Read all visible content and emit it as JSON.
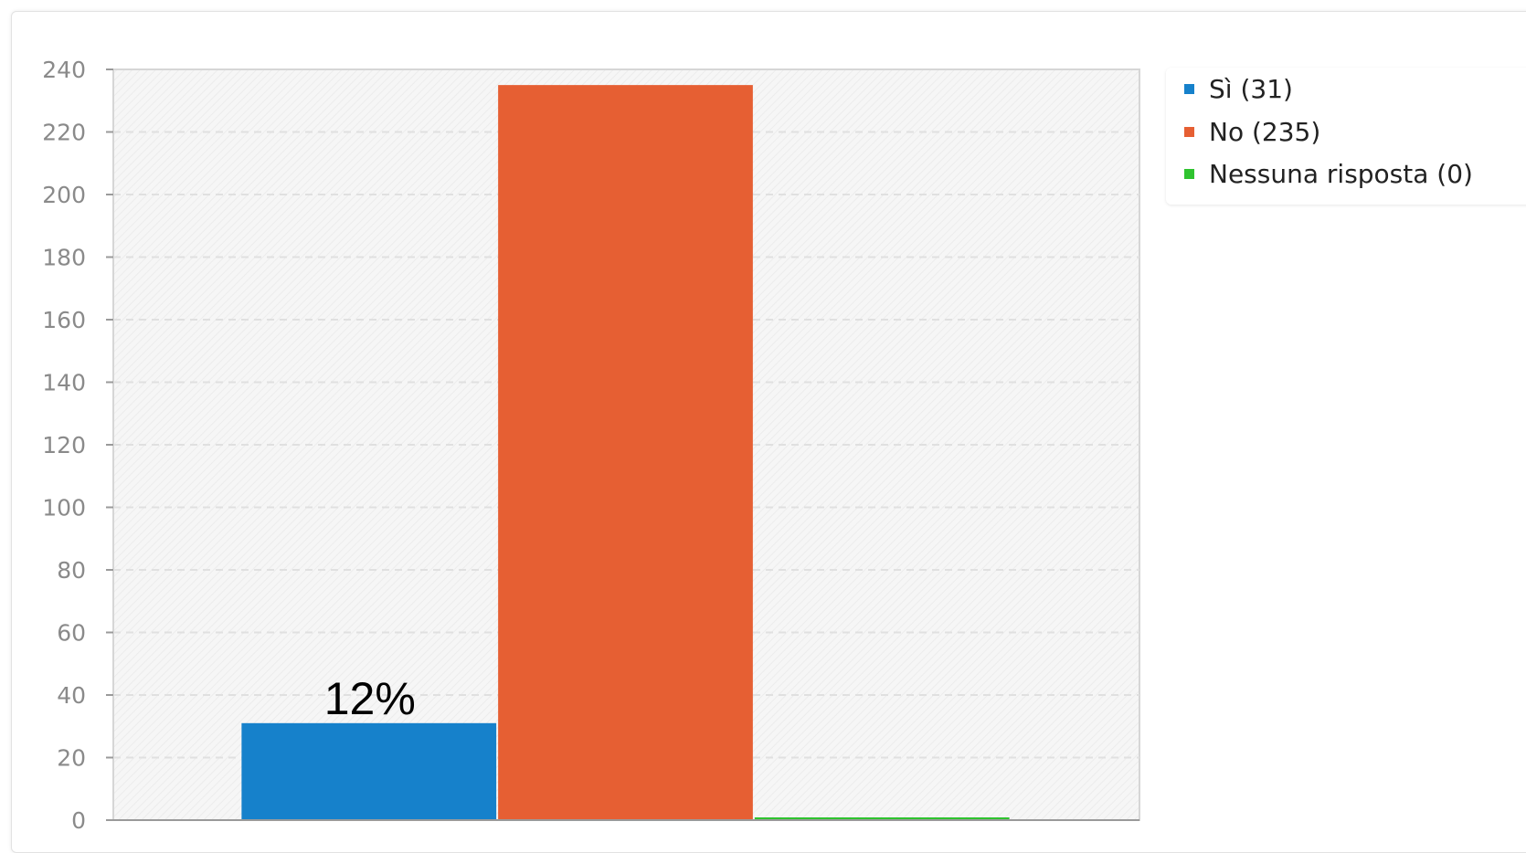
{
  "chart_data": {
    "type": "bar",
    "categories": [
      "Sì",
      "No",
      "Nessuna risposta"
    ],
    "values": [
      31,
      235,
      0
    ],
    "colors": [
      "#1681cb",
      "#e65f33",
      "#2fc32f"
    ],
    "data_labels": [
      "12%",
      "",
      ""
    ],
    "legend": [
      "Sì (31)",
      "No (235)",
      "Nessuna risposta (0)"
    ],
    "legend_placement": "top-right",
    "yticks": [
      "0",
      "20",
      "40",
      "60",
      "80",
      "100",
      "120",
      "140",
      "160",
      "180",
      "200",
      "220",
      "240"
    ],
    "ylim": [
      0,
      240
    ],
    "grid": true,
    "title": "",
    "xlabel": "",
    "ylabel": ""
  }
}
